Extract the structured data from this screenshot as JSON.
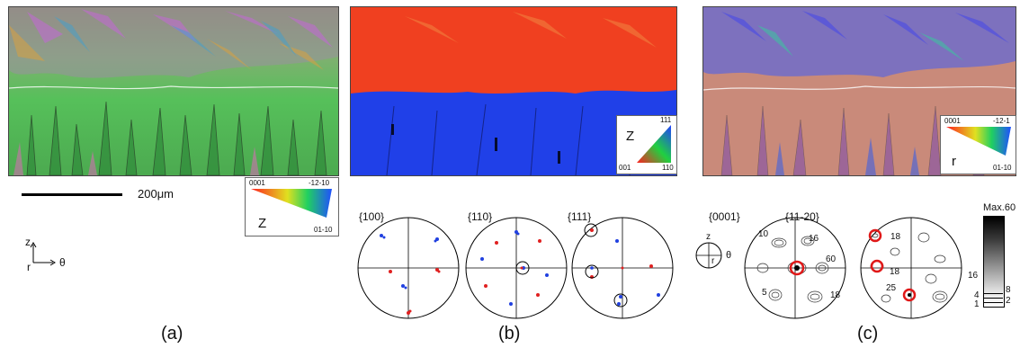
{
  "panels": {
    "a": {
      "label": "(a)",
      "scale_bar_text": "200μm",
      "axes": {
        "z": "z",
        "r": "r",
        "theta": "θ"
      },
      "key": {
        "title": "Z",
        "corner_top_left": "0001",
        "corner_top_right": "-12-10",
        "corner_bottom_right": "01-10"
      }
    },
    "b": {
      "label": "(b)",
      "key": {
        "title": "Z",
        "corner_top_right": "111",
        "corner_bottom_left": "001",
        "corner_bottom_right": "110"
      },
      "pole_figures": [
        {
          "title": "{100}"
        },
        {
          "title": "{110}"
        },
        {
          "title": "{111}"
        }
      ]
    },
    "c": {
      "label": "(c)",
      "key": {
        "title": "r",
        "corner_top_left": "0001",
        "corner_top_right": "-12-1",
        "corner_bottom_right": "01-10"
      },
      "axes": {
        "z": "z",
        "r": "r",
        "theta": "θ"
      },
      "pole_figures": [
        {
          "title": "{0001}",
          "contour_labels": [
            "10",
            "16",
            "60",
            "5",
            "18"
          ]
        },
        {
          "title": "{11-20}",
          "contour_labels": [
            "18",
            "18",
            "25"
          ]
        }
      ],
      "scale": {
        "max_label": "Max.60",
        "tick_labels": [
          "16",
          "8",
          "4",
          "2",
          "1"
        ]
      }
    }
  },
  "colors": {
    "red_pole": "#e02020",
    "blue_pole": "#2040e0",
    "red_ring": "#e01818"
  }
}
